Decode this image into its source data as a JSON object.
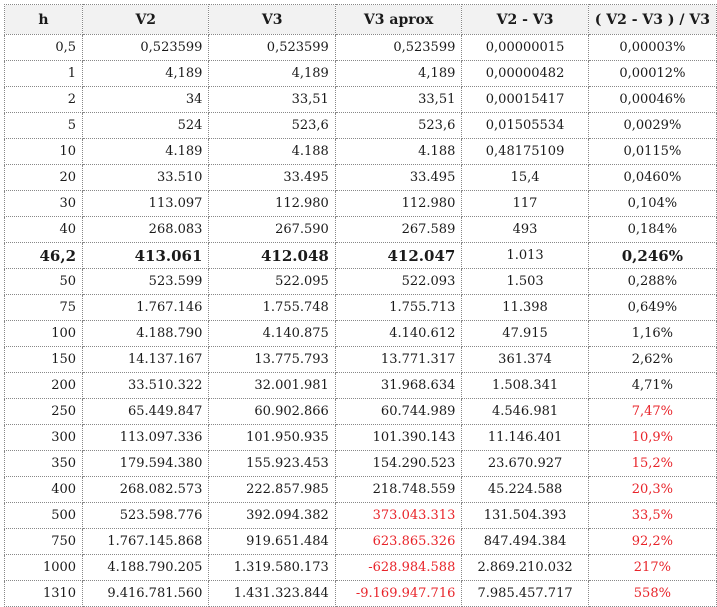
{
  "table": {
    "headers": [
      "h",
      "V2",
      "V3",
      "V3 aprox",
      "V2 - V3",
      "( V2 - V3 ) / V3"
    ],
    "rows": [
      {
        "cells": [
          "0,5",
          "0,523599",
          "0,523599",
          "0,523599",
          "0,00000015",
          "0,00003%"
        ]
      },
      {
        "cells": [
          "1",
          "4,189",
          "4,189",
          "4,189",
          "0,00000482",
          "0,00012%"
        ]
      },
      {
        "cells": [
          "2",
          "34",
          "33,51",
          "33,51",
          "0,00015417",
          "0,00046%"
        ]
      },
      {
        "cells": [
          "5",
          "524",
          "523,6",
          "523,6",
          "0,01505534",
          "0,0029%"
        ]
      },
      {
        "cells": [
          "10",
          "4.189",
          "4.188",
          "4.188",
          "0,48175109",
          "0,0115%"
        ]
      },
      {
        "cells": [
          "20",
          "33.510",
          "33.495",
          "33.495",
          "15,4",
          "0,0460%"
        ]
      },
      {
        "cells": [
          "30",
          "113.097",
          "112.980",
          "112.980",
          "117",
          "0,104%"
        ]
      },
      {
        "cells": [
          "40",
          "268.083",
          "267.590",
          "267.589",
          "493",
          "0,184%"
        ]
      },
      {
        "cells": [
          "46,2",
          "413.061",
          "412.048",
          "412.047",
          "1.013",
          "0,246%"
        ],
        "bold": true
      },
      {
        "cells": [
          "50",
          "523.599",
          "522.095",
          "522.093",
          "1.503",
          "0,288%"
        ]
      },
      {
        "cells": [
          "75",
          "1.767.146",
          "1.755.748",
          "1.755.713",
          "11.398",
          "0,649%"
        ]
      },
      {
        "cells": [
          "100",
          "4.188.790",
          "4.140.875",
          "4.140.612",
          "47.915",
          "1,16%"
        ]
      },
      {
        "cells": [
          "150",
          "14.137.167",
          "13.775.793",
          "13.771.317",
          "361.374",
          "2,62%"
        ]
      },
      {
        "cells": [
          "200",
          "33.510.322",
          "32.001.981",
          "31.968.634",
          "1.508.341",
          "4,71%"
        ]
      },
      {
        "cells": [
          "250",
          "65.449.847",
          "60.902.866",
          "60.744.989",
          "4.546.981",
          "7,47%"
        ],
        "red": [
          5
        ]
      },
      {
        "cells": [
          "300",
          "113.097.336",
          "101.950.935",
          "101.390.143",
          "11.146.401",
          "10,9%"
        ],
        "red": [
          5
        ]
      },
      {
        "cells": [
          "350",
          "179.594.380",
          "155.923.453",
          "154.290.523",
          "23.670.927",
          "15,2%"
        ],
        "red": [
          5
        ]
      },
      {
        "cells": [
          "400",
          "268.082.573",
          "222.857.985",
          "218.748.559",
          "45.224.588",
          "20,3%"
        ],
        "red": [
          5
        ]
      },
      {
        "cells": [
          "500",
          "523.598.776",
          "392.094.382",
          "373.043.313",
          "131.504.393",
          "33,5%"
        ],
        "red": [
          3,
          5
        ]
      },
      {
        "cells": [
          "750",
          "1.767.145.868",
          "919.651.484",
          "623.865.326",
          "847.494.384",
          "92,2%"
        ],
        "red": [
          3,
          5
        ]
      },
      {
        "cells": [
          "1000",
          "4.188.790.205",
          "1.319.580.173",
          "-628.984.588",
          "2.869.210.032",
          "217%"
        ],
        "red": [
          3,
          5
        ]
      },
      {
        "cells": [
          "1310",
          "9.416.781.560",
          "1.431.323.844",
          "-9.169.947.716",
          "7.985.457.717",
          "558%"
        ],
        "red": [
          3,
          5
        ]
      }
    ]
  },
  "colors": {
    "highlight_red": "#e8242a",
    "header_bg": "#f2f2f2",
    "grid": "#888888"
  }
}
